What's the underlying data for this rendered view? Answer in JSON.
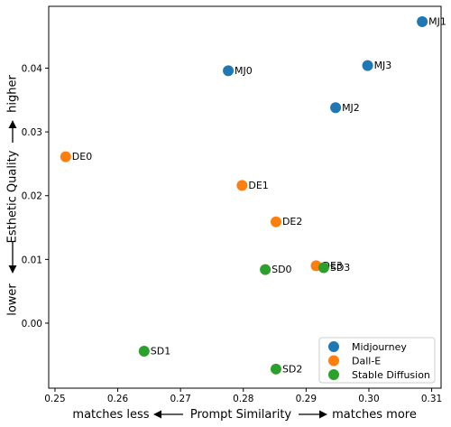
{
  "chart_data": {
    "type": "scatter",
    "xlabel": "matches less ⟵ Prompt Similarity ⟶ matches more",
    "xlabel_left": "matches less",
    "xlabel_center": "Prompt Similarity",
    "xlabel_right": "matches more",
    "ylabel": "lower ⟵ Esthetic Quality ⟶ higher",
    "ylabel_low": "lower",
    "ylabel_center": "Esthetic Quality",
    "ylabel_high": "higher",
    "xlim": [
      0.249,
      0.3115
    ],
    "ylim": [
      -0.0102,
      0.0497
    ],
    "xticks": [
      "0.25",
      "0.26",
      "0.27",
      "0.28",
      "0.29",
      "0.30",
      "0.31"
    ],
    "xtick_values": [
      0.25,
      0.26,
      0.27,
      0.28,
      0.29,
      0.3,
      0.31
    ],
    "yticks": [
      "0.00",
      "0.01",
      "0.02",
      "0.03",
      "0.04"
    ],
    "ytick_values": [
      0.0,
      0.01,
      0.02,
      0.03,
      0.04
    ],
    "grid": false,
    "legend_position": "bottom-right",
    "series": [
      {
        "name": "Midjourney",
        "color": "#1f77b4",
        "points": [
          {
            "label": "MJ0",
            "x": 0.2776,
            "y": 0.0396
          },
          {
            "label": "MJ1",
            "x": 0.3085,
            "y": 0.0473
          },
          {
            "label": "MJ2",
            "x": 0.2947,
            "y": 0.0338
          },
          {
            "label": "MJ3",
            "x": 0.2998,
            "y": 0.0404
          }
        ]
      },
      {
        "name": "Dall-E",
        "color": "#ff7f0e",
        "points": [
          {
            "label": "DE0",
            "x": 0.2517,
            "y": 0.0261
          },
          {
            "label": "DE1",
            "x": 0.2798,
            "y": 0.0216
          },
          {
            "label": "DE2",
            "x": 0.2852,
            "y": 0.0159
          },
          {
            "label": "DE3",
            "x": 0.2916,
            "y": 0.009
          }
        ]
      },
      {
        "name": "Stable Diffusion",
        "color": "#2ca02c",
        "points": [
          {
            "label": "SD0",
            "x": 0.2835,
            "y": 0.0084
          },
          {
            "label": "SD1",
            "x": 0.2642,
            "y": -0.0044
          },
          {
            "label": "SD2",
            "x": 0.2852,
            "y": -0.0072
          },
          {
            "label": "SD3",
            "x": 0.2928,
            "y": 0.0087
          }
        ]
      }
    ]
  }
}
